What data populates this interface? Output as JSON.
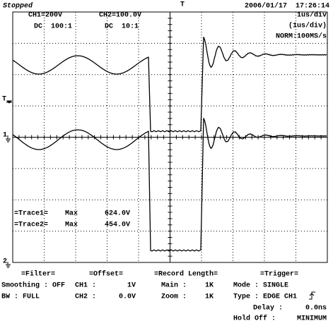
{
  "status": "Stopped",
  "datetime": "2006/01/17  17:26:14",
  "trigger_position_marker": "T",
  "channels": [
    {
      "label": "CH1=200V",
      "coupling": "DC  100:1",
      "marker": "1"
    },
    {
      "label": "CH2=100.0V",
      "coupling": "DC  10:1",
      "marker": "2"
    }
  ],
  "trigger_level_marker": "T",
  "timebase": [
    "1us/div",
    "(1us/div)",
    "NORM:100MS/s"
  ],
  "measurements": [
    {
      "name": "=Trace1=",
      "type": "Max",
      "value": "624.0V"
    },
    {
      "name": "=Trace2=",
      "type": "Max",
      "value": "454.0V"
    }
  ],
  "panel": {
    "filter": {
      "title": "=Filter=",
      "rows": [
        "Smoothing : OFF",
        "BW : FULL"
      ]
    },
    "offset": {
      "title": "=Offset=",
      "rows": [
        [
          "CH1 :",
          "1V"
        ],
        [
          "CH2 :",
          "0.0V"
        ]
      ]
    },
    "record_length": {
      "title": "=Record Length=",
      "rows": [
        [
          "Main :",
          "1K"
        ],
        [
          "Zoom :",
          "1K"
        ]
      ]
    },
    "trigger": {
      "title": "=Trigger=",
      "rows": [
        "Mode : SINGLE",
        "Type : EDGE CH1"
      ],
      "settings": [
        [
          "Delay :",
          "0.0ns"
        ],
        [
          "Hold Off :",
          "MINIMUM"
        ]
      ]
    }
  }
}
